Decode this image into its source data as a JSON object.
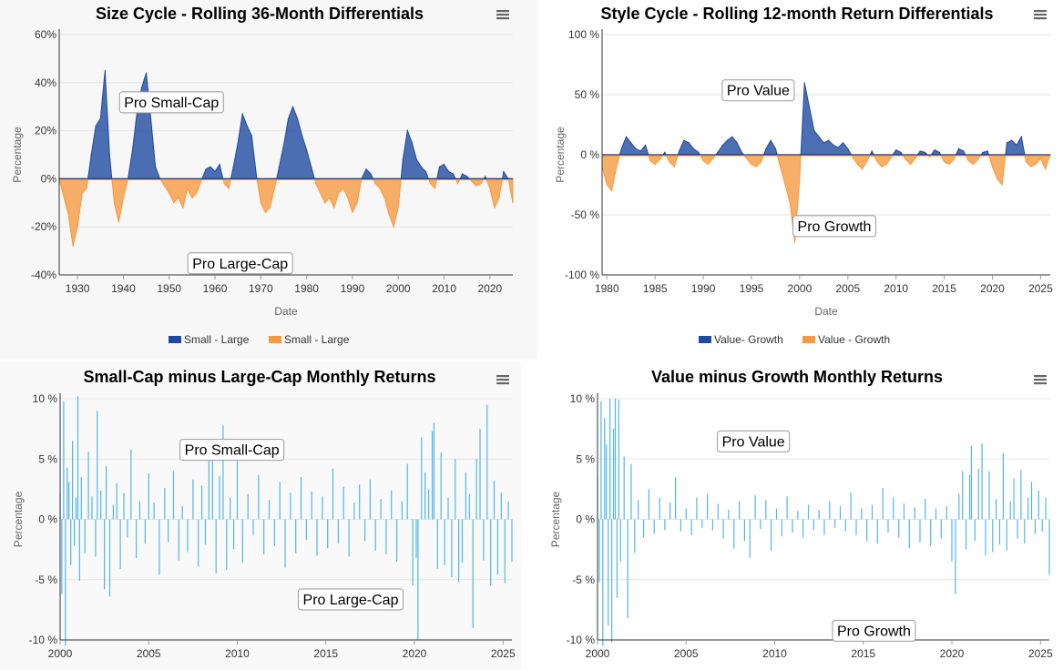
{
  "colors": {
    "positive": "#1f4aa0",
    "negative": "#f59a41",
    "bar": "#52b6ea",
    "grid": "#e6e6e6",
    "axis": "#333333",
    "menu": "#666666"
  },
  "menu_icon": "hamburger-menu-icon",
  "chart_data": [
    {
      "type": "area",
      "title": "Size Cycle - Rolling 36-Month Differentials",
      "xlabel": "Date",
      "ylabel": "Percentage",
      "xlim": [
        1926,
        2025
      ],
      "ylim": [
        -40,
        60
      ],
      "x_ticks": [
        1930,
        1940,
        1950,
        1960,
        1970,
        1980,
        1990,
        2000,
        2010,
        2020
      ],
      "y_ticks": [
        60,
        40,
        20,
        0,
        -20,
        -40
      ],
      "y_tick_labels": [
        "60%",
        "40%",
        "20%",
        "0%",
        "-20%",
        "-40%"
      ],
      "grid": true,
      "legend_position": "bottom",
      "legend": [
        "Small - Large",
        "Small - Large"
      ],
      "annotations": [
        {
          "text": "Pro Small-Cap",
          "x": 1950.5,
          "y": 32
        },
        {
          "text": "Pro Large-Cap",
          "x": 1965.5,
          "y": -35
        }
      ],
      "x": [
        1926,
        1928,
        1929,
        1930,
        1931,
        1932,
        1933,
        1934,
        1935,
        1936,
        1937,
        1938,
        1939,
        1940,
        1941,
        1942,
        1943,
        1944,
        1945,
        1946,
        1947,
        1948,
        1949,
        1950,
        1951,
        1952,
        1953,
        1954,
        1955,
        1956,
        1957,
        1958,
        1959,
        1960,
        1961,
        1962,
        1963,
        1964,
        1965,
        1966,
        1967,
        1968,
        1969,
        1970,
        1971,
        1972,
        1973,
        1974,
        1975,
        1976,
        1977,
        1978,
        1979,
        1980,
        1981,
        1982,
        1983,
        1984,
        1985,
        1986,
        1987,
        1988,
        1989,
        1990,
        1991,
        1992,
        1993,
        1994,
        1995,
        1996,
        1997,
        1998,
        1999,
        2000,
        2001,
        2002,
        2003,
        2004,
        2005,
        2006,
        2007,
        2008,
        2009,
        2010,
        2011,
        2012,
        2013,
        2014,
        2015,
        2016,
        2017,
        2018,
        2019,
        2020,
        2021,
        2022,
        2023,
        2024,
        2025
      ],
      "values": [
        0,
        -15,
        -28,
        -20,
        -6,
        -4,
        10,
        22,
        25,
        45,
        10,
        -10,
        -18,
        -8,
        0,
        12,
        28,
        38,
        44,
        25,
        5,
        0,
        -3,
        -6,
        -10,
        -8,
        -12,
        -4,
        -8,
        -6,
        -1,
        4,
        5,
        3,
        6,
        -2,
        -4,
        5,
        15,
        27,
        22,
        18,
        2,
        -10,
        -14,
        -12,
        -4,
        5,
        14,
        25,
        30,
        25,
        18,
        12,
        5,
        -2,
        -6,
        -10,
        -8,
        -12,
        -6,
        -4,
        -8,
        -14,
        -10,
        0,
        4,
        2,
        -2,
        -4,
        -8,
        -15,
        -20,
        -12,
        8,
        20,
        15,
        8,
        5,
        3,
        -2,
        -4,
        5,
        6,
        3,
        2,
        -2,
        2,
        1,
        -1,
        -3,
        -2,
        1,
        -4,
        -12,
        -8,
        3,
        0,
        -10
      ]
    },
    {
      "type": "area",
      "title": "Style Cycle - Rolling 12-month Return Differentials",
      "xlabel": "Date",
      "ylabel": "Percentage",
      "xlim": [
        1979.5,
        2026
      ],
      "ylim": [
        -100,
        100
      ],
      "x_ticks": [
        1980,
        1985,
        1990,
        1995,
        2000,
        2005,
        2010,
        2015,
        2020,
        2025
      ],
      "y_ticks": [
        100,
        50,
        0,
        -50,
        -100
      ],
      "y_tick_labels": [
        "100 %",
        "50 %",
        "0 %",
        "-50 %",
        "-100 %"
      ],
      "grid": true,
      "legend_position": "bottom",
      "legend": [
        "Value- Growth",
        "Value - Growth"
      ],
      "annotations": [
        {
          "text": "Pro Value",
          "x": 1995.7,
          "y": 54
        },
        {
          "text": "Pro Growth",
          "x": 2003.6,
          "y": -59
        }
      ],
      "x": [
        1979.5,
        1980,
        1980.5,
        1981,
        1981.5,
        1982,
        1982.5,
        1983,
        1983.5,
        1984,
        1984.5,
        1985,
        1985.5,
        1986,
        1986.5,
        1987,
        1987.5,
        1988,
        1988.5,
        1989,
        1989.5,
        1990,
        1990.5,
        1991,
        1991.5,
        1992,
        1992.5,
        1993,
        1993.5,
        1994,
        1994.5,
        1995,
        1995.5,
        1996,
        1996.5,
        1997,
        1997.5,
        1998,
        1998.5,
        1999,
        1999.5,
        2000,
        2000.5,
        2001,
        2001.5,
        2002,
        2002.5,
        2003,
        2003.5,
        2004,
        2004.5,
        2005,
        2005.5,
        2006,
        2006.5,
        2007,
        2007.5,
        2008,
        2008.5,
        2009,
        2009.5,
        2010,
        2010.5,
        2011,
        2011.5,
        2012,
        2012.5,
        2013,
        2013.5,
        2014,
        2014.5,
        2015,
        2015.5,
        2016,
        2016.5,
        2017,
        2017.5,
        2018,
        2018.5,
        2019,
        2019.5,
        2020,
        2020.5,
        2021,
        2021.5,
        2022,
        2022.5,
        2023,
        2023.5,
        2024,
        2024.5,
        2025,
        2025.5,
        2026
      ],
      "values": [
        -10,
        -25,
        -30,
        -10,
        5,
        15,
        10,
        5,
        3,
        8,
        -5,
        -8,
        -4,
        2,
        -6,
        -10,
        3,
        12,
        10,
        5,
        2,
        -5,
        -8,
        -3,
        2,
        8,
        12,
        15,
        10,
        2,
        -3,
        -8,
        -10,
        -6,
        5,
        12,
        5,
        -10,
        -25,
        -40,
        -73,
        -20,
        60,
        40,
        20,
        15,
        10,
        12,
        8,
        6,
        10,
        5,
        -2,
        -8,
        -12,
        -5,
        3,
        -5,
        -10,
        -8,
        -2,
        4,
        2,
        -4,
        -8,
        -3,
        3,
        2,
        -2,
        4,
        2,
        -6,
        -8,
        -4,
        5,
        3,
        -5,
        -8,
        -4,
        2,
        3,
        -10,
        -20,
        -25,
        10,
        12,
        8,
        15,
        -6,
        -10,
        -8,
        -3,
        -12,
        0
      ]
    },
    {
      "type": "bar",
      "title": "Small-Cap minus Large-Cap Monthly Returns",
      "ylabel": "Percentage",
      "xlim": [
        2000,
        2025.5
      ],
      "ylim": [
        -10,
        10
      ],
      "x_ticks": [
        2000,
        2005,
        2010,
        2015,
        2020,
        2025
      ],
      "y_ticks": [
        10,
        5,
        0,
        -5,
        -10
      ],
      "y_tick_labels": [
        "10 %",
        "5 %",
        "0 %",
        "-5 %",
        "-10 %"
      ],
      "grid": true,
      "annotations": [
        {
          "text": "Pro Small-Cap",
          "x": 2009.7,
          "y": 5.8
        },
        {
          "text": "Pro Large-Cap",
          "x": 2016.4,
          "y": -6.6
        }
      ],
      "x": [
        2000,
        2000.1,
        2000.2,
        2000.3,
        2000.4,
        2000.5,
        2000.6,
        2000.7,
        2000.8,
        2000.9,
        2001.0,
        2001.1,
        2001.2,
        2001.4,
        2001.6,
        2001.8,
        2002.0,
        2002.1,
        2002.3,
        2002.5,
        2002.6,
        2002.8,
        2003.0,
        2003.2,
        2003.4,
        2003.6,
        2003.8,
        2004.0,
        2004.3,
        2004.5,
        2004.8,
        2005.0,
        2005.3,
        2005.6,
        2005.9,
        2006.1,
        2006.4,
        2006.7,
        2006.9,
        2007.2,
        2007.5,
        2007.8,
        2008.0,
        2008.2,
        2008.4,
        2008.6,
        2008.8,
        2009.0,
        2009.2,
        2009.4,
        2009.6,
        2009.8,
        2010.0,
        2010.3,
        2010.6,
        2010.9,
        2011.2,
        2011.5,
        2011.8,
        2012.1,
        2012.4,
        2012.7,
        2013.0,
        2013.3,
        2013.6,
        2013.9,
        2014.2,
        2014.5,
        2014.8,
        2015.1,
        2015.4,
        2015.7,
        2016.0,
        2016.3,
        2016.6,
        2016.9,
        2017.2,
        2017.5,
        2017.8,
        2018.1,
        2018.4,
        2018.7,
        2019.0,
        2019.3,
        2019.6,
        2019.9,
        2020.1,
        2020.2,
        2020.4,
        2020.6,
        2020.8,
        2021.0,
        2021.1,
        2021.3,
        2021.5,
        2021.7,
        2021.9,
        2022.1,
        2022.3,
        2022.5,
        2022.7,
        2022.9,
        2023.1,
        2023.3,
        2023.5,
        2023.7,
        2023.9,
        2024.1,
        2024.3,
        2024.5,
        2024.7,
        2024.9,
        2025.1,
        2025.3,
        2025.5
      ],
      "values": [
        2.1,
        -6.2,
        9.8,
        -10.5,
        4.3,
        3.1,
        -3.8,
        6.5,
        -2.2,
        1.8,
        10.2,
        -5.1,
        3.5,
        -2.8,
        5.6,
        1.9,
        -3.1,
        9.0,
        2.4,
        -5.8,
        4.4,
        -6.4,
        1.2,
        3.0,
        -4.1,
        2.2,
        -1.5,
        5.8,
        -3.2,
        1.5,
        -2.0,
        3.8,
        1.4,
        -4.6,
        2.6,
        -1.9,
        4.0,
        -3.4,
        1.1,
        -2.7,
        3.3,
        -3.9,
        2.8,
        -2.1,
        6.0,
        5.2,
        -4.5,
        3.6,
        7.8,
        -4.2,
        1.8,
        -2.5,
        4.9,
        -3.6,
        2.1,
        -1.3,
        3.7,
        -2.9,
        1.6,
        -2.2,
        3.1,
        -4.0,
        2.2,
        -2.8,
        3.5,
        -1.7,
        2.3,
        -3.0,
        1.9,
        -2.4,
        4.2,
        -2.0,
        2.7,
        -3.1,
        1.4,
        2.9,
        -1.8,
        3.3,
        -2.6,
        1.7,
        -2.9,
        2.4,
        -3.5,
        1.5,
        4.6,
        -5.5,
        -3.2,
        -10.0,
        6.8,
        3.9,
        2.5,
        7.3,
        8.0,
        -4.1,
        5.5,
        -3.8,
        1.8,
        -4.8,
        5.0,
        -5.2,
        -3.6,
        3.9,
        2.1,
        -9.0,
        5.0,
        7.5,
        -3.4,
        9.5,
        -5.5,
        3.2,
        -4.6,
        2.2,
        -5.3,
        1.5,
        -3.5
      ]
    },
    {
      "type": "bar",
      "title": "Value minus Growth Monthly Returns",
      "ylabel": "Percentage",
      "xlim": [
        2000,
        2025.5
      ],
      "ylim": [
        -10,
        10
      ],
      "x_ticks": [
        2000,
        2005,
        2010,
        2015,
        2020,
        2025
      ],
      "y_ticks": [
        10,
        5,
        0,
        -5,
        -10
      ],
      "y_tick_labels": [
        "10 %",
        "5 %",
        "0 %",
        "-5 %",
        "-10 %"
      ],
      "grid": true,
      "annotations": [
        {
          "text": "Pro Value",
          "x": 2008.8,
          "y": 6.5
        },
        {
          "text": "Pro Growth",
          "x": 2015.6,
          "y": -9.2
        }
      ],
      "x": [
        2000,
        2000.1,
        2000.2,
        2000.3,
        2000.4,
        2000.5,
        2000.6,
        2000.7,
        2000.8,
        2000.9,
        2001.0,
        2001.1,
        2001.2,
        2001.3,
        2001.5,
        2001.7,
        2001.9,
        2002.1,
        2002.3,
        2002.6,
        2002.9,
        2003.2,
        2003.5,
        2003.8,
        2004.1,
        2004.4,
        2004.7,
        2005.0,
        2005.3,
        2005.6,
        2005.9,
        2006.2,
        2006.5,
        2006.8,
        2007.1,
        2007.4,
        2007.7,
        2008.0,
        2008.3,
        2008.6,
        2008.9,
        2009.2,
        2009.5,
        2009.8,
        2010.1,
        2010.4,
        2010.7,
        2011.0,
        2011.3,
        2011.6,
        2011.9,
        2012.2,
        2012.5,
        2012.8,
        2013.1,
        2013.4,
        2013.7,
        2014.0,
        2014.3,
        2014.6,
        2014.9,
        2015.2,
        2015.5,
        2015.8,
        2016.1,
        2016.4,
        2016.7,
        2017.0,
        2017.3,
        2017.6,
        2017.9,
        2018.2,
        2018.5,
        2018.8,
        2019.1,
        2019.4,
        2019.7,
        2020.0,
        2020.2,
        2020.4,
        2020.6,
        2020.8,
        2021.0,
        2021.1,
        2021.3,
        2021.5,
        2021.7,
        2021.9,
        2022.1,
        2022.3,
        2022.5,
        2022.7,
        2022.9,
        2023.1,
        2023.3,
        2023.5,
        2023.7,
        2023.9,
        2024.1,
        2024.3,
        2024.5,
        2024.7,
        2024.9,
        2025.1,
        2025.3,
        2025.5
      ],
      "values": [
        3.5,
        -5.2,
        9.8,
        -10.5,
        8.4,
        6.2,
        -8.8,
        10.0,
        -10.2,
        7.5,
        10.0,
        -6.5,
        9.9,
        -3.5,
        5.2,
        -8.2,
        4.6,
        -2.8,
        1.6,
        -1.5,
        2.5,
        -1.2,
        1.8,
        -0.9,
        1.4,
        3.5,
        -1.0,
        0.9,
        -1.3,
        1.8,
        -0.7,
        2.1,
        -0.9,
        1.3,
        -1.6,
        0.8,
        -2.4,
        1.5,
        -1.8,
        -3.2,
        2.0,
        -0.8,
        1.6,
        -2.6,
        0.9,
        -1.4,
        1.9,
        -1.1,
        0.7,
        -1.5,
        1.2,
        -0.9,
        0.8,
        -1.3,
        1.5,
        -0.7,
        1.1,
        -1.0,
        2.2,
        -1.3,
        0.9,
        -1.8,
        1.2,
        -2.0,
        2.6,
        -1.1,
        1.8,
        -1.5,
        1.3,
        -2.4,
        1.0,
        -1.9,
        1.7,
        -2.2,
        0.9,
        -1.6,
        1.1,
        -3.5,
        -6.2,
        2.1,
        4.0,
        -2.5,
        3.7,
        6.1,
        -1.8,
        4.2,
        6.3,
        -3.0,
        4.0,
        -2.7,
        1.7,
        -2.1,
        5.5,
        -2.6,
        1.5,
        3.4,
        -1.6,
        4.1,
        -2.0,
        1.8,
        3.1,
        -1.2,
        2.4,
        -1.0,
        1.8,
        -4.6
      ]
    }
  ]
}
